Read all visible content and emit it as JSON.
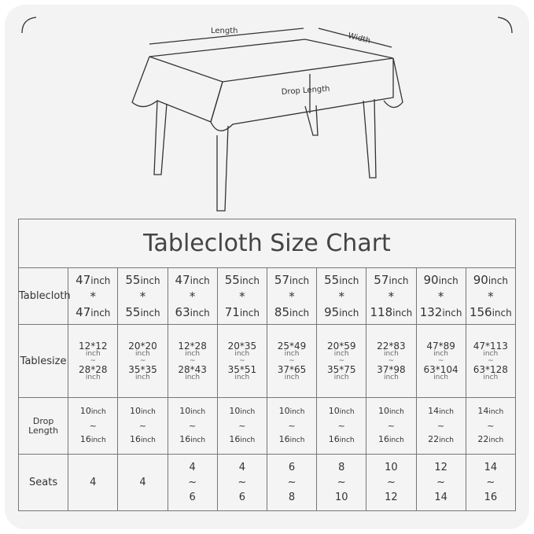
{
  "diagram": {
    "length_label": "Length",
    "width_label": "Width",
    "drop_label": "Drop Length"
  },
  "chart": {
    "title": "Tablecloth Size Chart",
    "row_labels": {
      "tablecloth": "Tablecloth",
      "tablesize": "Tablesize",
      "drop_length": "Drop Length",
      "seats": "Seats"
    },
    "unit": "inch",
    "separator": "*",
    "range_symbol": "~",
    "columns": [
      {
        "cloth": [
          "47",
          "47"
        ],
        "size": [
          "12*12",
          "28*28"
        ],
        "drop": [
          "10",
          "16"
        ],
        "seats": [
          "4"
        ]
      },
      {
        "cloth": [
          "55",
          "55"
        ],
        "size": [
          "20*20",
          "35*35"
        ],
        "drop": [
          "10",
          "16"
        ],
        "seats": [
          "4"
        ]
      },
      {
        "cloth": [
          "47",
          "63"
        ],
        "size": [
          "12*28",
          "28*43"
        ],
        "drop": [
          "10",
          "16"
        ],
        "seats": [
          "4",
          "6"
        ]
      },
      {
        "cloth": [
          "55",
          "71"
        ],
        "size": [
          "20*35",
          "35*51"
        ],
        "drop": [
          "10",
          "16"
        ],
        "seats": [
          "4",
          "6"
        ]
      },
      {
        "cloth": [
          "57",
          "85"
        ],
        "size": [
          "25*49",
          "37*65"
        ],
        "drop": [
          "10",
          "16"
        ],
        "seats": [
          "6",
          "8"
        ]
      },
      {
        "cloth": [
          "55",
          "95"
        ],
        "size": [
          "20*59",
          "35*75"
        ],
        "drop": [
          "10",
          "16"
        ],
        "seats": [
          "8",
          "10"
        ]
      },
      {
        "cloth": [
          "57",
          "118"
        ],
        "size": [
          "22*83",
          "37*98"
        ],
        "drop": [
          "10",
          "16"
        ],
        "seats": [
          "10",
          "12"
        ]
      },
      {
        "cloth": [
          "90",
          "132"
        ],
        "size": [
          "47*89",
          "63*104"
        ],
        "drop": [
          "14",
          "22"
        ],
        "seats": [
          "12",
          "14"
        ]
      },
      {
        "cloth": [
          "90",
          "156"
        ],
        "size": [
          "47*113",
          "63*128"
        ],
        "drop": [
          "14",
          "22"
        ],
        "seats": [
          "14",
          "16"
        ]
      }
    ]
  }
}
